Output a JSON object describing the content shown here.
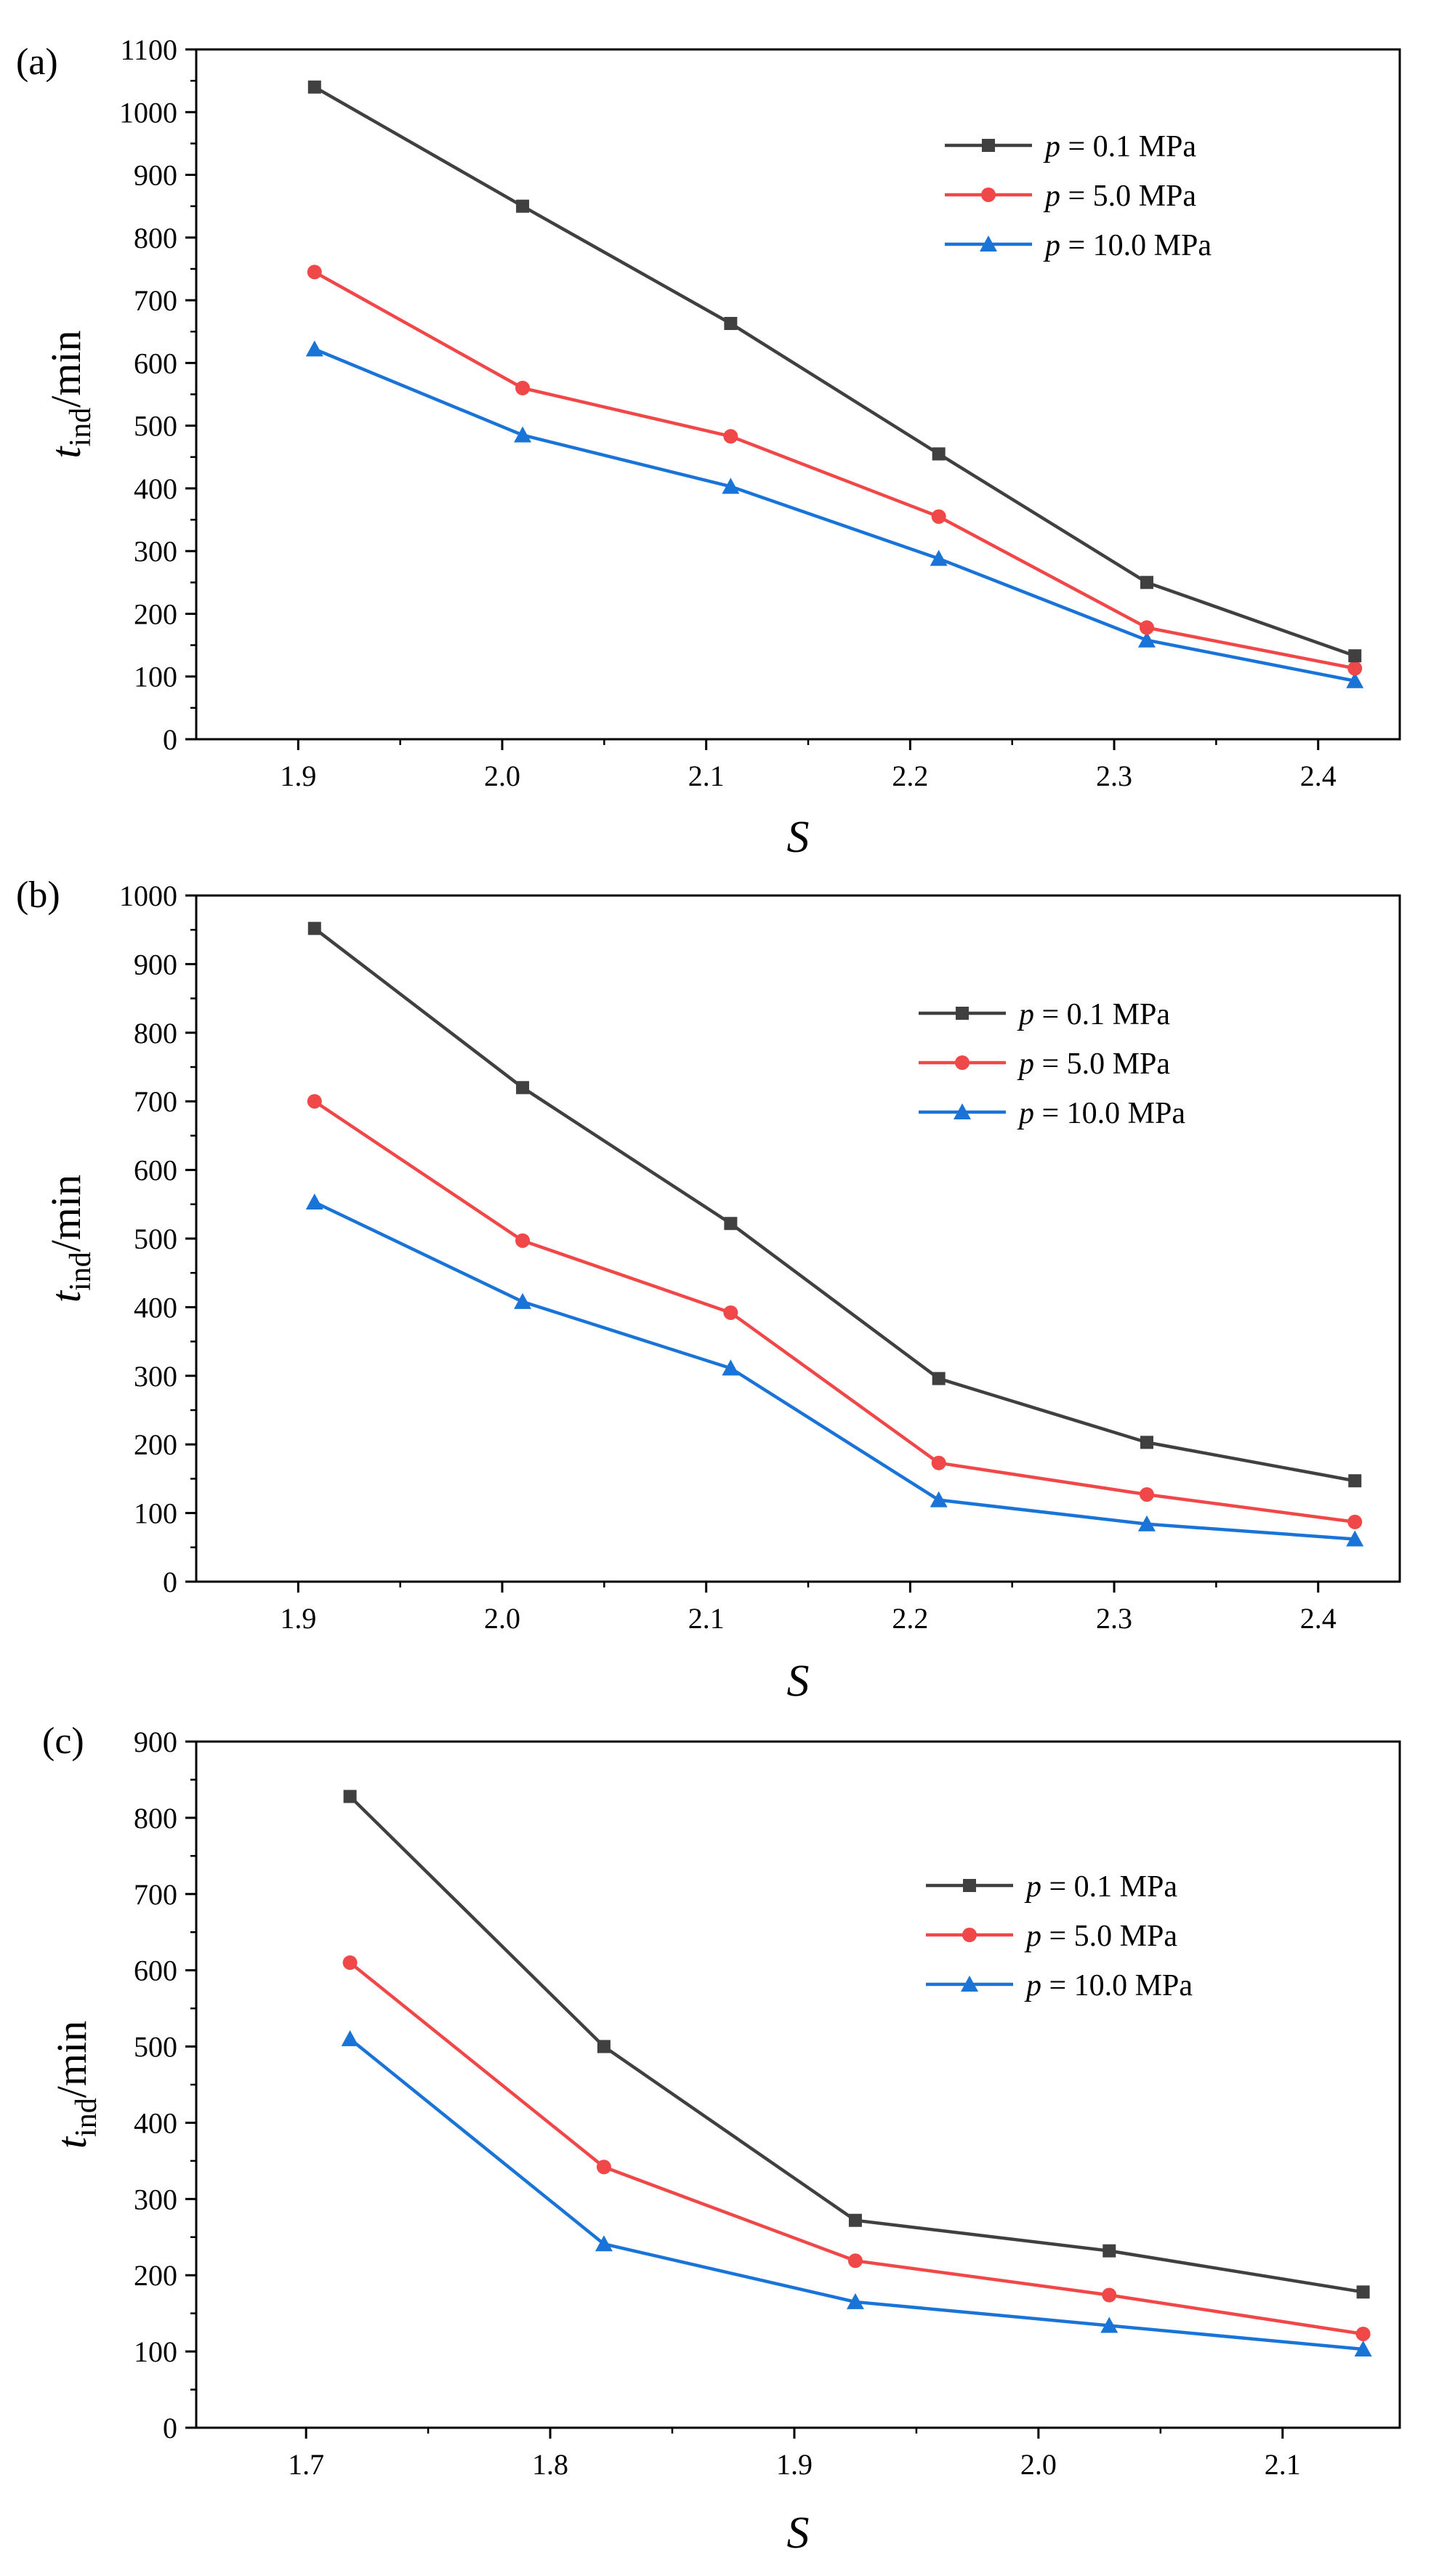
{
  "chart_data": [
    {
      "type": "line",
      "panel_label": "(a)",
      "xlabel": "S",
      "ylabel": {
        "main": "t",
        "sub": "ind",
        "unit": "/min"
      },
      "xlim": [
        1.85,
        2.44
      ],
      "ylim": [
        0,
        1100
      ],
      "xticks": [
        1.9,
        2.0,
        2.1,
        2.2,
        2.3,
        2.4
      ],
      "xtick_labels": [
        "1.9",
        "2.0",
        "2.1",
        "2.2",
        "2.3",
        "2.4"
      ],
      "yticks": [
        0,
        100,
        200,
        300,
        400,
        500,
        600,
        700,
        800,
        900,
        1000,
        1100
      ],
      "ytick_labels": [
        "0",
        "100",
        "200",
        "300",
        "400",
        "500",
        "600",
        "700",
        "800",
        "900",
        "1000",
        "1100"
      ],
      "legend_position": "top-right",
      "x": [
        1.908,
        2.01,
        2.112,
        2.214,
        2.316,
        2.418
      ],
      "series": [
        {
          "name": "p = 0.1 MPa",
          "var": "p",
          "rest": " = 0.1 MPa",
          "color": "#404040",
          "marker": "square",
          "values": [
            1040,
            850,
            663,
            455,
            250,
            133
          ]
        },
        {
          "name": "p = 5.0 MPa",
          "var": "p",
          "rest": " = 5.0 MPa",
          "color": "#f04848",
          "marker": "circle",
          "values": [
            745,
            560,
            483,
            355,
            178,
            113
          ]
        },
        {
          "name": "p = 10.0 MPa",
          "var": "p",
          "rest": " = 10.0 MPa",
          "color": "#1a74d8",
          "marker": "triangle",
          "values": [
            622,
            485,
            403,
            288,
            158,
            93
          ]
        }
      ]
    },
    {
      "type": "line",
      "panel_label": "(b)",
      "xlabel": "S",
      "ylabel": {
        "main": "t",
        "sub": "ind",
        "unit": "/min"
      },
      "xlim": [
        1.85,
        2.44
      ],
      "ylim": [
        0,
        1000
      ],
      "xticks": [
        1.9,
        2.0,
        2.1,
        2.2,
        2.3,
        2.4
      ],
      "xtick_labels": [
        "1.9",
        "2.0",
        "2.1",
        "2.2",
        "2.3",
        "2.4"
      ],
      "yticks": [
        0,
        100,
        200,
        300,
        400,
        500,
        600,
        700,
        800,
        900,
        1000
      ],
      "ytick_labels": [
        "0",
        "100",
        "200",
        "300",
        "400",
        "500",
        "600",
        "700",
        "800",
        "900",
        "1000"
      ],
      "legend_position": "top-right",
      "x": [
        1.908,
        2.01,
        2.112,
        2.214,
        2.316,
        2.418
      ],
      "series": [
        {
          "name": "p = 0.1 MPa",
          "var": "p",
          "rest": " = 0.1 MPa",
          "color": "#404040",
          "marker": "square",
          "values": [
            952,
            720,
            522,
            296,
            203,
            147
          ]
        },
        {
          "name": "p = 5.0 MPa",
          "var": "p",
          "rest": " = 5.0 MPa",
          "color": "#f04848",
          "marker": "circle",
          "values": [
            700,
            497,
            392,
            173,
            127,
            87
          ]
        },
        {
          "name": "p = 10.0 MPa",
          "var": "p",
          "rest": " = 10.0 MPa",
          "color": "#1a74d8",
          "marker": "triangle",
          "values": [
            553,
            408,
            311,
            119,
            84,
            62
          ]
        }
      ]
    },
    {
      "type": "line",
      "panel_label": "(c)",
      "xlabel": "S",
      "ylabel": {
        "main": "t",
        "sub": "ind",
        "unit": "/min"
      },
      "xlim": [
        1.655,
        2.148
      ],
      "ylim": [
        0,
        900
      ],
      "xticks": [
        1.7,
        1.8,
        1.9,
        2.0,
        2.1
      ],
      "xtick_labels": [
        "1.7",
        "1.8",
        "1.9",
        "2.0",
        "2.1"
      ],
      "yticks": [
        0,
        100,
        200,
        300,
        400,
        500,
        600,
        700,
        800,
        900
      ],
      "ytick_labels": [
        "0",
        "100",
        "200",
        "300",
        "400",
        "500",
        "600",
        "700",
        "800",
        "900"
      ],
      "legend_position": "top-right",
      "x": [
        1.718,
        1.822,
        1.925,
        2.029,
        2.133
      ],
      "series": [
        {
          "name": "p = 0.1 MPa",
          "var": "p",
          "rest": " = 0.1 MPa",
          "color": "#404040",
          "marker": "square",
          "values": [
            828,
            500,
            272,
            232,
            178
          ]
        },
        {
          "name": "p = 5.0 MPa",
          "var": "p",
          "rest": " = 5.0 MPa",
          "color": "#f04848",
          "marker": "circle",
          "values": [
            610,
            342,
            219,
            174,
            123
          ]
        },
        {
          "name": "p = 10.0 MPa",
          "var": "p",
          "rest": " = 10.0 MPa",
          "color": "#1a74d8",
          "marker": "triangle",
          "values": [
            510,
            241,
            165,
            134,
            103
          ]
        }
      ]
    }
  ]
}
